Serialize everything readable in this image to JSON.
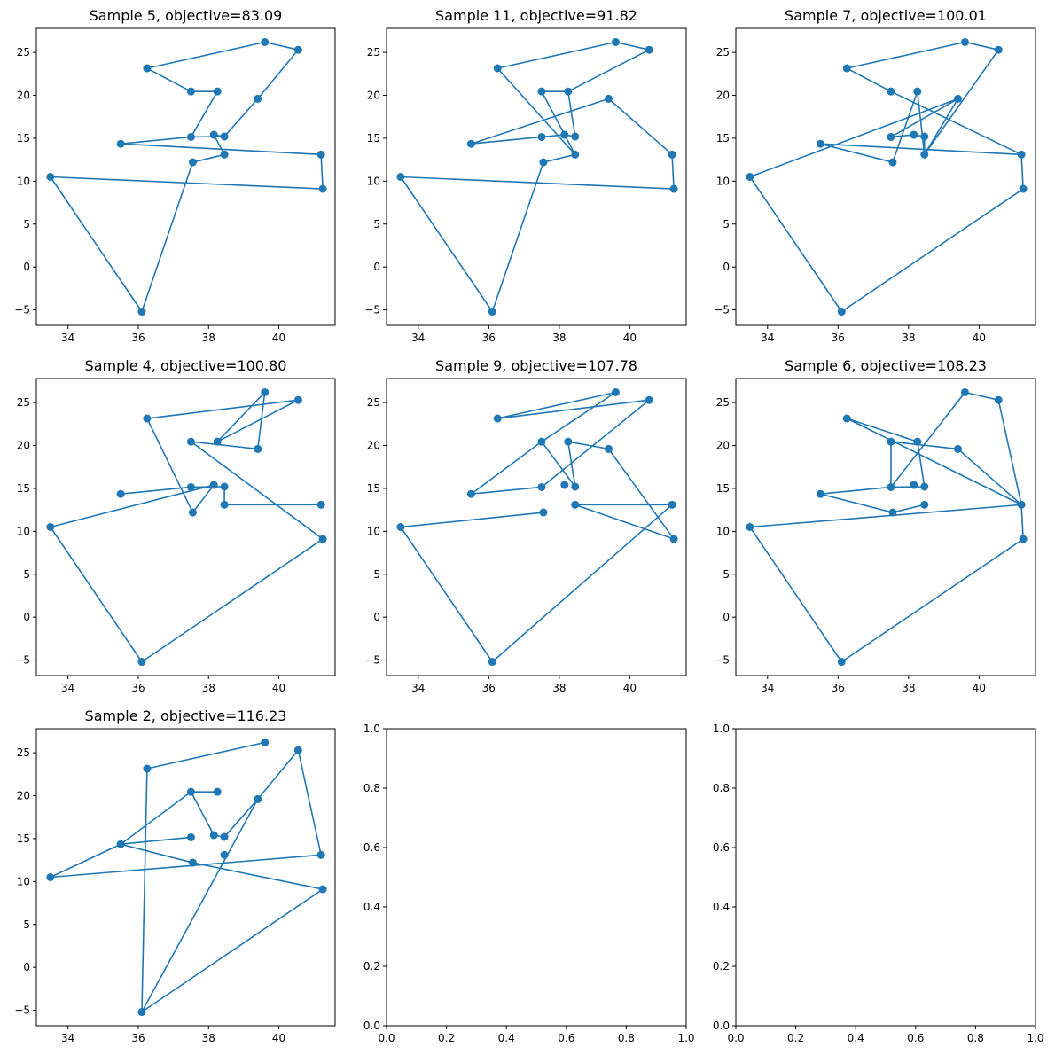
{
  "figure": {
    "series_color": "#1f77b4",
    "shared_points": [
      {
        "id": "A",
        "x": 36.1,
        "y": -5.2
      },
      {
        "id": "B",
        "x": 33.5,
        "y": 10.5
      },
      {
        "id": "C",
        "x": 41.25,
        "y": 9.1
      },
      {
        "id": "D",
        "x": 41.2,
        "y": 13.1
      },
      {
        "id": "E",
        "x": 38.45,
        "y": 13.1
      },
      {
        "id": "F",
        "x": 37.55,
        "y": 12.2
      },
      {
        "id": "G",
        "x": 35.5,
        "y": 14.35
      },
      {
        "id": "H",
        "x": 37.5,
        "y": 15.15
      },
      {
        "id": "I",
        "x": 38.15,
        "y": 15.4
      },
      {
        "id": "J",
        "x": 38.45,
        "y": 15.2
      },
      {
        "id": "K",
        "x": 37.5,
        "y": 20.45
      },
      {
        "id": "L",
        "x": 38.25,
        "y": 20.45
      },
      {
        "id": "M",
        "x": 39.4,
        "y": 19.6
      },
      {
        "id": "N",
        "x": 36.25,
        "y": 23.15
      },
      {
        "id": "O",
        "x": 39.6,
        "y": 26.2
      },
      {
        "id": "P",
        "x": 40.55,
        "y": 25.3
      }
    ]
  },
  "chart_data": [
    {
      "type": "line",
      "title": "Sample 5, objective=83.09",
      "xlim": [
        33.1,
        41.6
      ],
      "ylim": [
        -6.8,
        27.8
      ],
      "xticks": [
        34,
        36,
        38,
        40
      ],
      "xtick_labels": [
        "34",
        "36",
        "38",
        "40"
      ],
      "yticks": [
        -5,
        0,
        5,
        10,
        15,
        20,
        25
      ],
      "ytick_labels": [
        "−5",
        "0",
        "5",
        "10",
        "15",
        "20",
        "25"
      ],
      "route": [
        "A",
        "F",
        "E",
        "I",
        "J",
        "H",
        "G",
        "D",
        "C",
        "B",
        "A"
      ],
      "route_extra": [
        "H",
        "L",
        "K",
        "N",
        "O",
        "P",
        "M",
        "J"
      ],
      "marker": "circle"
    },
    {
      "type": "line",
      "title": "Sample 11, objective=91.82",
      "xlim": [
        33.1,
        41.6
      ],
      "ylim": [
        -6.8,
        27.8
      ],
      "xticks": [
        34,
        36,
        38,
        40
      ],
      "xtick_labels": [
        "34",
        "36",
        "38",
        "40"
      ],
      "yticks": [
        -5,
        0,
        5,
        10,
        15,
        20,
        25
      ],
      "ytick_labels": [
        "−5",
        "0",
        "5",
        "10",
        "15",
        "20",
        "25"
      ],
      "route": [
        "A",
        "F",
        "E",
        "K",
        "L",
        "J",
        "I",
        "H",
        "G",
        "M",
        "D",
        "C",
        "B",
        "A"
      ],
      "route_extra": [
        "E",
        "N",
        "O",
        "P",
        "L"
      ],
      "marker": "circle"
    },
    {
      "type": "line",
      "title": "Sample 7, objective=100.01",
      "xlim": [
        33.1,
        41.6
      ],
      "ylim": [
        -6.8,
        27.8
      ],
      "xticks": [
        34,
        36,
        38,
        40
      ],
      "xtick_labels": [
        "34",
        "36",
        "38",
        "40"
      ],
      "yticks": [
        -5,
        0,
        5,
        10,
        15,
        20,
        25
      ],
      "ytick_labels": [
        "−5",
        "0",
        "5",
        "10",
        "15",
        "20",
        "25"
      ],
      "route": [
        "A",
        "C",
        "D",
        "G",
        "F",
        "L",
        "E",
        "P",
        "O",
        "N",
        "K",
        "D"
      ],
      "route_extra": [
        "B",
        "A",
        "B",
        "M",
        "H",
        "I",
        "J",
        "E",
        "M"
      ],
      "marker": "circle"
    },
    {
      "type": "line",
      "title": "Sample 4, objective=100.80",
      "xlim": [
        33.1,
        41.6
      ],
      "ylim": [
        -6.8,
        27.8
      ],
      "xticks": [
        34,
        36,
        38,
        40
      ],
      "xtick_labels": [
        "34",
        "36",
        "38",
        "40"
      ],
      "yticks": [
        -5,
        0,
        5,
        10,
        15,
        20,
        25
      ],
      "ytick_labels": [
        "−5",
        "0",
        "5",
        "10",
        "15",
        "20",
        "25"
      ],
      "route": [
        "A",
        "C",
        "K",
        "M",
        "O",
        "L",
        "P",
        "N",
        "F",
        "I",
        "B",
        "A"
      ],
      "route_extra": [
        "G",
        "H",
        "J",
        "E",
        "D"
      ],
      "marker": "circle"
    },
    {
      "type": "line",
      "title": "Sample 9, objective=107.78",
      "xlim": [
        33.1,
        41.6
      ],
      "ylim": [
        -6.8,
        27.8
      ],
      "xticks": [
        34,
        36,
        38,
        40
      ],
      "xtick_labels": [
        "34",
        "36",
        "38",
        "40"
      ],
      "yticks": [
        -5,
        0,
        5,
        10,
        15,
        20,
        25
      ],
      "ytick_labels": [
        "−5",
        "0",
        "5",
        "10",
        "15",
        "20",
        "25"
      ],
      "route": [
        "A",
        "B",
        "F"
      ],
      "route_extra": [
        "A",
        "D",
        "E",
        "C",
        "M",
        "L",
        "J",
        "K",
        "O",
        "N",
        "P",
        "H",
        "G",
        "K"
      ],
      "marker": "circle"
    },
    {
      "type": "line",
      "title": "Sample 6, objective=108.23",
      "xlim": [
        33.1,
        41.6
      ],
      "ylim": [
        -6.8,
        27.8
      ],
      "xticks": [
        34,
        36,
        38,
        40
      ],
      "xtick_labels": [
        "34",
        "36",
        "38",
        "40"
      ],
      "yticks": [
        -5,
        0,
        5,
        10,
        15,
        20,
        25
      ],
      "ytick_labels": [
        "−5",
        "0",
        "5",
        "10",
        "15",
        "20",
        "25"
      ],
      "route": [
        "A",
        "C",
        "D",
        "B",
        "A"
      ],
      "route_extra": [
        "D",
        "P",
        "O",
        "H",
        "J",
        "L",
        "N",
        "D",
        "M",
        "K",
        "H",
        "G",
        "F",
        "E"
      ],
      "marker": "circle"
    },
    {
      "type": "line",
      "title": "Sample 2, objective=116.23",
      "xlim": [
        33.1,
        41.6
      ],
      "ylim": [
        -6.8,
        27.8
      ],
      "xticks": [
        34,
        36,
        38,
        40
      ],
      "xtick_labels": [
        "34",
        "36",
        "38",
        "40"
      ],
      "yticks": [
        -5,
        0,
        5,
        10,
        15,
        20,
        25
      ],
      "ytick_labels": [
        "−5",
        "0",
        "5",
        "10",
        "15",
        "20",
        "25"
      ],
      "route": [
        "A",
        "M",
        "P",
        "D",
        "B",
        "G",
        "K",
        "L",
        "K",
        "I",
        "J",
        "M"
      ],
      "route_extra": [
        "H",
        "G",
        "F",
        "C",
        "A",
        "N",
        "O"
      ],
      "marker": "circle"
    },
    {
      "type": "line",
      "title": "",
      "xlim": [
        0,
        1
      ],
      "ylim": [
        0,
        1
      ],
      "xticks": [
        0,
        0.2,
        0.4,
        0.6,
        0.8,
        1.0
      ],
      "xtick_labels": [
        "0.0",
        "0.2",
        "0.4",
        "0.6",
        "0.8",
        "1.0"
      ],
      "yticks": [
        0,
        0.2,
        0.4,
        0.6,
        0.8,
        1.0
      ],
      "ytick_labels": [
        "0.0",
        "0.2",
        "0.4",
        "0.6",
        "0.8",
        "1.0"
      ],
      "route": [],
      "route_extra": [],
      "marker": "none"
    },
    {
      "type": "line",
      "title": "",
      "xlim": [
        0,
        1
      ],
      "ylim": [
        0,
        1
      ],
      "xticks": [
        0,
        0.2,
        0.4,
        0.6,
        0.8,
        1.0
      ],
      "xtick_labels": [
        "0.0",
        "0.2",
        "0.4",
        "0.6",
        "0.8",
        "1.0"
      ],
      "yticks": [
        0,
        0.2,
        0.4,
        0.6,
        0.8,
        1.0
      ],
      "ytick_labels": [
        "0.0",
        "0.2",
        "0.4",
        "0.6",
        "0.8",
        "1.0"
      ],
      "route": [],
      "route_extra": [],
      "marker": "none"
    }
  ]
}
